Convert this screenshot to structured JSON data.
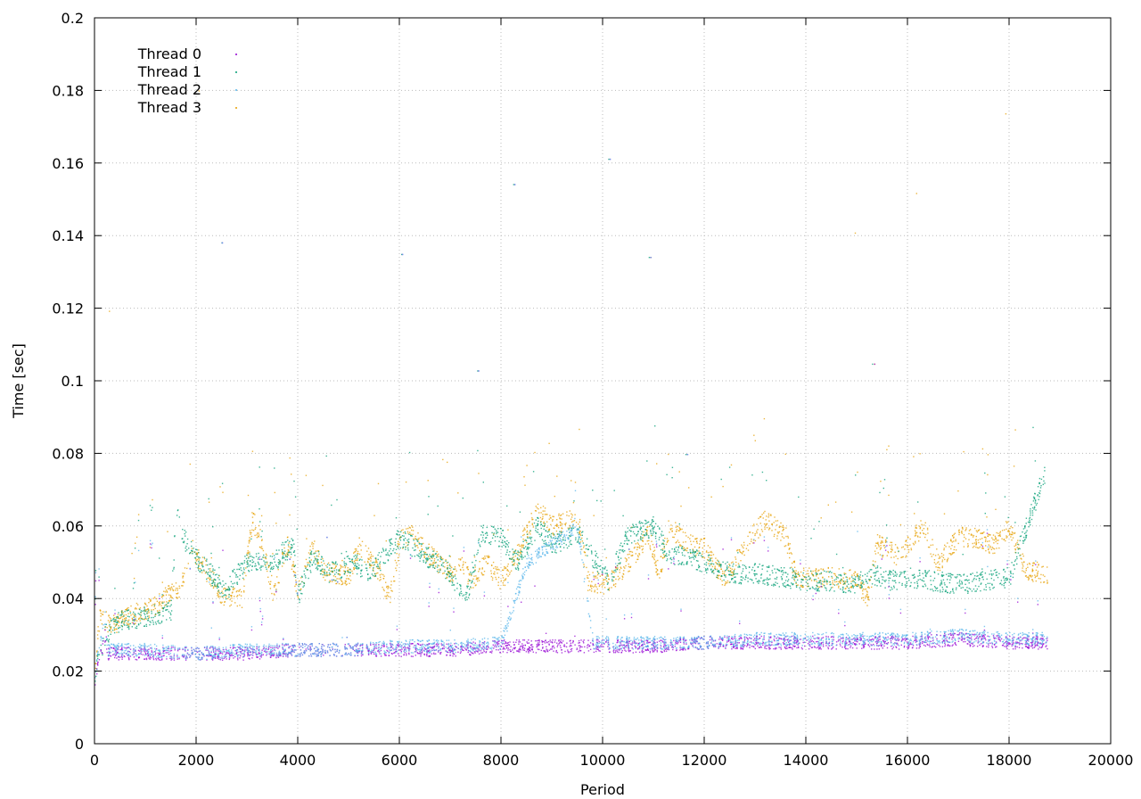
{
  "chart_data": {
    "type": "scatter",
    "title": "",
    "xlabel": "Period",
    "ylabel": "Time [sec]",
    "xlim": [
      0,
      20000
    ],
    "ylim": [
      0,
      0.2
    ],
    "x_ticks": [
      0,
      2000,
      4000,
      6000,
      8000,
      10000,
      12000,
      14000,
      16000,
      18000,
      20000
    ],
    "y_ticks": [
      0,
      0.02,
      0.04,
      0.06,
      0.08,
      0.1,
      0.12,
      0.14,
      0.16,
      0.18,
      0.2
    ],
    "x_tick_labels": [
      "0",
      "2000",
      "4000",
      "6000",
      "8000",
      "10000",
      "12000",
      "14000",
      "16000",
      "18000",
      "20000"
    ],
    "y_tick_labels": [
      "0",
      "0.02",
      "0.04",
      "0.06",
      "0.08",
      "0.1",
      "0.12",
      "0.14",
      "0.16",
      "0.18",
      "0.2"
    ],
    "grid": true,
    "legend_position": "top-left",
    "series": [
      {
        "name": "Thread 0",
        "color": "#9400d3",
        "x": [
          0,
          200,
          250,
          1000,
          2000,
          3000,
          4000,
          5000,
          6000,
          7000,
          8000,
          8500,
          9800,
          11000,
          12000,
          13000,
          14000,
          15000,
          16000,
          17000,
          18000,
          18750
        ],
        "y": [
          0.018,
          0.03,
          0.025,
          0.025,
          0.025,
          0.025,
          0.026,
          0.026,
          0.026,
          0.026,
          0.027,
          0.027,
          0.027,
          0.027,
          0.028,
          0.028,
          0.028,
          0.028,
          0.028,
          0.029,
          0.028,
          0.028
        ]
      },
      {
        "name": "Thread 1",
        "color": "#009e73",
        "x": [
          0,
          200,
          500,
          1000,
          1500,
          1600,
          1700,
          1950,
          2600,
          2700,
          3000,
          3500,
          3900,
          4000,
          4300,
          4600,
          5100,
          5400,
          6000,
          6200,
          6500,
          7000,
          7300,
          7600,
          8000,
          8300,
          8700,
          9000,
          9500,
          10100,
          10500,
          11000,
          11300,
          11600,
          12000,
          12300,
          12600,
          13000,
          13600,
          14000,
          14500,
          15000,
          15300,
          15600,
          16000,
          16500,
          17000,
          17500,
          18000,
          18700
        ],
        "y": [
          0.02,
          0.03,
          0.034,
          0.035,
          0.037,
          0.065,
          0.058,
          0.052,
          0.042,
          0.045,
          0.05,
          0.05,
          0.055,
          0.041,
          0.052,
          0.047,
          0.05,
          0.047,
          0.057,
          0.055,
          0.052,
          0.047,
          0.04,
          0.058,
          0.057,
          0.05,
          0.06,
          0.055,
          0.058,
          0.045,
          0.058,
          0.06,
          0.052,
          0.052,
          0.05,
          0.048,
          0.047,
          0.047,
          0.046,
          0.045,
          0.045,
          0.044,
          0.047,
          0.045,
          0.046,
          0.045,
          0.044,
          0.045,
          0.046,
          0.075
        ]
      },
      {
        "name": "Thread 2",
        "color": "#56b4e9",
        "x": [
          0,
          200,
          250,
          1000,
          2000,
          3000,
          4000,
          5000,
          6000,
          7000,
          8000,
          8500,
          9000,
          9500,
          9800,
          11000,
          12000,
          13000,
          14000,
          15000,
          16000,
          17000,
          18000,
          18750
        ],
        "y": [
          0.02,
          0.035,
          0.026,
          0.026,
          0.025,
          0.026,
          0.026,
          0.026,
          0.027,
          0.027,
          0.028,
          0.05,
          0.055,
          0.06,
          0.028,
          0.028,
          0.028,
          0.029,
          0.029,
          0.029,
          0.029,
          0.03,
          0.029,
          0.029
        ]
      },
      {
        "name": "Thread 3",
        "color": "#e69f00",
        "x": [
          0,
          100,
          300,
          500,
          800,
          1200,
          1500,
          1700,
          1900,
          2000,
          2500,
          2900,
          3100,
          3300,
          3500,
          3800,
          4000,
          4300,
          4500,
          5000,
          5200,
          5600,
          5800,
          6000,
          6200,
          6600,
          7000,
          7200,
          7400,
          7700,
          8000,
          8300,
          8700,
          9000,
          9500,
          9700,
          10100,
          10500,
          10900,
          11100,
          11300,
          11600,
          12000,
          12400,
          12800,
          13200,
          13600,
          13800,
          14500,
          15000,
          15200,
          15400,
          15800,
          16000,
          16300,
          16600,
          17000,
          17300,
          17700,
          18000,
          18300,
          18750
        ],
        "y": [
          0.022,
          0.035,
          0.033,
          0.034,
          0.036,
          0.038,
          0.042,
          0.043,
          0.055,
          0.052,
          0.041,
          0.04,
          0.062,
          0.055,
          0.042,
          0.055,
          0.042,
          0.055,
          0.048,
          0.046,
          0.055,
          0.047,
          0.04,
          0.056,
          0.058,
          0.052,
          0.047,
          0.05,
          0.045,
          0.05,
          0.045,
          0.052,
          0.065,
          0.06,
          0.063,
          0.045,
          0.044,
          0.05,
          0.058,
          0.047,
          0.06,
          0.056,
          0.054,
          0.045,
          0.055,
          0.062,
          0.057,
          0.046,
          0.046,
          0.045,
          0.04,
          0.055,
          0.052,
          0.055,
          0.06,
          0.05,
          0.057,
          0.057,
          0.055,
          0.06,
          0.048,
          0.047
        ]
      }
    ]
  }
}
